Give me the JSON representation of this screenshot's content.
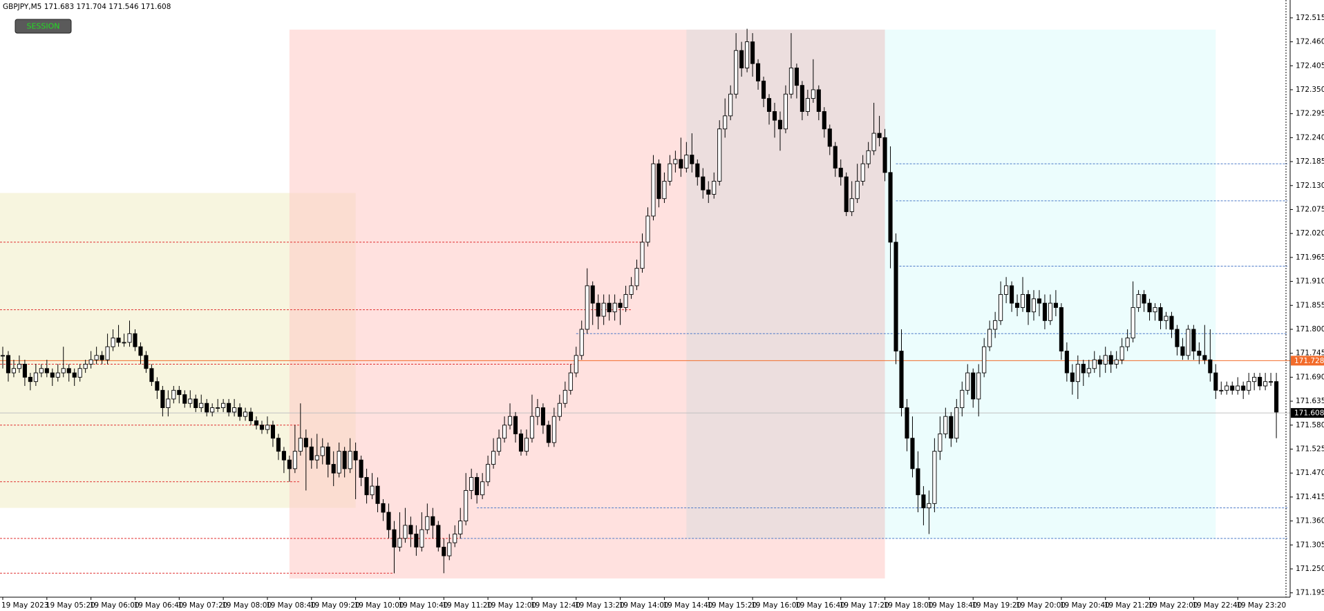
{
  "chart_data": {
    "type": "candlestick",
    "title": "GBPJPY,M5  171.683 171.704 171.546 171.608",
    "button": "SESSION",
    "xlim": [
      -0.5,
      233.5
    ],
    "ylim": [
      171.185,
      172.556
    ],
    "yticks": [
      171.195,
      {
        "value": 171.25,
        "label": "171.250"
      },
      171.305,
      {
        "value": 171.36,
        "label": "171.360"
      },
      171.415,
      {
        "value": 171.47,
        "label": "171.470"
      },
      171.525,
      {
        "value": 171.58,
        "label": "171.580"
      },
      171.635,
      {
        "value": 171.69,
        "label": "171.690"
      },
      171.745,
      {
        "value": 171.8,
        "label": "171.800"
      },
      171.855,
      {
        "value": 171.91,
        "label": "171.910"
      },
      171.965,
      {
        "value": 172.02,
        "label": "172.020"
      },
      172.075,
      {
        "value": 172.13,
        "label": "172.130"
      },
      172.185,
      {
        "value": 172.24,
        "label": "172.240"
      },
      172.295,
      {
        "value": 172.35,
        "label": "172.350"
      },
      172.405,
      {
        "value": 172.46,
        "label": "172.460"
      },
      172.515
    ],
    "xticks": [
      {
        "value": 0,
        "label": "19 May 2023"
      },
      {
        "value": 8,
        "label": "19 May 05:20"
      },
      {
        "value": 16,
        "label": "19 May 06:00"
      },
      {
        "value": 24,
        "label": "19 May 06:40"
      },
      {
        "value": 32,
        "label": "19 May 07:20"
      },
      {
        "value": 40,
        "label": "19 May 08:00"
      },
      {
        "value": 48,
        "label": "19 May 08:40"
      },
      {
        "value": 56,
        "label": "19 May 09:20"
      },
      {
        "value": 64,
        "label": "19 May 10:00"
      },
      {
        "value": 72,
        "label": "19 May 10:40"
      },
      {
        "value": 80,
        "label": "19 May 11:20"
      },
      {
        "value": 88,
        "label": "19 May 12:00"
      },
      {
        "value": 96,
        "label": "19 May 12:40"
      },
      {
        "value": 104,
        "label": "19 May 13:20"
      },
      {
        "value": 112,
        "label": "19 May 14:00"
      },
      {
        "value": 120,
        "label": "19 May 14:40"
      },
      {
        "value": 128,
        "label": "19 May 15:20"
      },
      {
        "value": 136,
        "label": "19 May 16:00"
      },
      {
        "value": 144,
        "label": "19 May 16:40"
      },
      {
        "value": 152,
        "label": "19 May 17:20"
      },
      {
        "value": 160,
        "label": "19 May 18:00"
      },
      {
        "value": 168,
        "label": "19 May 18:40"
      },
      {
        "value": 176,
        "label": "19 May 19:20"
      },
      {
        "value": 184,
        "label": "19 May 20:00"
      },
      {
        "value": 192,
        "label": "19 May 20:40"
      },
      {
        "value": 200,
        "label": "19 May 21:20"
      },
      {
        "value": 208,
        "label": "19 May 22:00"
      },
      {
        "value": 216,
        "label": "19 May 22:40"
      },
      {
        "value": 224,
        "label": "19 May 23:20"
      }
    ],
    "bull_color": "#ffffff",
    "bear_color": "#000000",
    "close": [
      171.74,
      171.7,
      171.71,
      171.72,
      171.69,
      171.68,
      171.7,
      171.71,
      171.7,
      171.69,
      171.7,
      171.71,
      171.7,
      171.69,
      171.71,
      171.72,
      171.73,
      171.74,
      171.73,
      171.76,
      171.78,
      171.77,
      171.77,
      171.79,
      171.76,
      171.74,
      171.71,
      171.68,
      171.66,
      171.62,
      171.64,
      171.66,
      171.65,
      171.63,
      171.64,
      171.62,
      171.63,
      171.61,
      171.62,
      171.62,
      171.63,
      171.61,
      171.62,
      171.6,
      171.61,
      171.59,
      171.58,
      171.57,
      171.58,
      171.55,
      171.52,
      171.5,
      171.48,
      171.52,
      171.55,
      171.53,
      171.5,
      171.51,
      171.53,
      171.49,
      171.47,
      171.52,
      171.48,
      171.52,
      171.5,
      171.46,
      171.42,
      171.44,
      171.4,
      171.38,
      171.34,
      171.3,
      171.32,
      171.35,
      171.33,
      171.3,
      171.34,
      171.37,
      171.35,
      171.3,
      171.28,
      171.31,
      171.33,
      171.36,
      171.43,
      171.46,
      171.42,
      171.45,
      171.49,
      171.52,
      171.55,
      171.58,
      171.6,
      171.56,
      171.52,
      171.55,
      171.6,
      171.62,
      171.58,
      171.54,
      171.6,
      171.63,
      171.66,
      171.7,
      171.74,
      171.8,
      171.9,
      171.86,
      171.83,
      171.86,
      171.84,
      171.86,
      171.85,
      171.88,
      171.9,
      171.94,
      172.0,
      172.06,
      172.18,
      172.1,
      172.14,
      172.18,
      172.19,
      172.17,
      172.2,
      172.18,
      172.15,
      172.12,
      172.11,
      172.14,
      172.26,
      172.29,
      172.34,
      172.44,
      172.4,
      172.46,
      172.41,
      172.37,
      172.33,
      172.3,
      172.28,
      172.26,
      172.34,
      172.4,
      172.36,
      172.3,
      172.33,
      172.35,
      172.3,
      172.26,
      172.22,
      172.17,
      172.15,
      172.07,
      172.1,
      172.14,
      172.18,
      172.21,
      172.25,
      172.24,
      172.16,
      172.0,
      171.75,
      171.62,
      171.55,
      171.48,
      171.42,
      171.39,
      171.4,
      171.52,
      171.56,
      171.6,
      171.55,
      171.62,
      171.66,
      171.7,
      171.64,
      171.7,
      171.76,
      171.8,
      171.82,
      171.88,
      171.9,
      171.86,
      171.85,
      171.88,
      171.84,
      171.87,
      171.86,
      171.82,
      171.86,
      171.85,
      171.75,
      171.7,
      171.68,
      171.72,
      171.7,
      171.71,
      171.73,
      171.72,
      171.74,
      171.72,
      171.73,
      171.76,
      171.78,
      171.85,
      171.88,
      171.86,
      171.84,
      171.85,
      171.82,
      171.83,
      171.8,
      171.76,
      171.74,
      171.8,
      171.75,
      171.74,
      171.73,
      171.7,
      171.66,
      171.66,
      171.67,
      171.66,
      171.67,
      171.66,
      171.68,
      171.69,
      171.67,
      171.68,
      171.68,
      171.61
    ],
    "high": [
      171.76,
      171.75,
      171.73,
      171.74,
      171.73,
      171.7,
      171.72,
      171.72,
      171.73,
      171.71,
      171.72,
      171.76,
      171.72,
      171.71,
      171.72,
      171.73,
      171.75,
      171.76,
      171.75,
      171.79,
      171.8,
      171.81,
      171.79,
      171.82,
      171.8,
      171.77,
      171.75,
      171.72,
      171.69,
      171.67,
      171.66,
      171.67,
      171.67,
      171.66,
      171.66,
      171.65,
      171.65,
      171.64,
      171.63,
      171.64,
      171.64,
      171.64,
      171.64,
      171.63,
      171.62,
      171.62,
      171.6,
      171.59,
      171.6,
      171.59,
      171.56,
      171.53,
      171.51,
      171.58,
      171.63,
      171.57,
      171.55,
      171.56,
      171.55,
      171.54,
      171.52,
      171.54,
      171.53,
      171.55,
      171.54,
      171.51,
      171.48,
      171.47,
      171.46,
      171.41,
      171.4,
      171.36,
      171.38,
      171.39,
      171.37,
      171.35,
      171.38,
      171.4,
      171.39,
      171.36,
      171.32,
      171.33,
      171.35,
      171.39,
      171.47,
      171.48,
      171.47,
      171.47,
      171.51,
      171.55,
      171.57,
      171.6,
      171.63,
      171.61,
      171.57,
      171.57,
      171.65,
      171.64,
      171.63,
      171.59,
      171.62,
      171.65,
      171.68,
      171.72,
      171.76,
      171.82,
      171.94,
      171.91,
      171.88,
      171.88,
      171.88,
      171.88,
      171.87,
      171.9,
      171.92,
      171.96,
      172.02,
      172.08,
      172.2,
      172.19,
      172.16,
      172.2,
      172.21,
      172.24,
      172.23,
      172.25,
      172.19,
      172.17,
      172.14,
      172.16,
      172.28,
      172.33,
      172.36,
      172.48,
      172.46,
      172.49,
      172.48,
      172.42,
      172.38,
      172.34,
      172.32,
      172.3,
      172.36,
      172.48,
      172.41,
      172.37,
      172.35,
      172.42,
      172.36,
      172.31,
      172.27,
      172.23,
      172.19,
      172.16,
      172.14,
      172.18,
      172.2,
      172.23,
      172.32,
      172.29,
      172.26,
      172.22,
      172.02,
      171.8,
      171.64,
      171.6,
      171.52,
      171.44,
      171.43,
      171.55,
      171.6,
      171.62,
      171.61,
      171.64,
      171.68,
      171.72,
      171.71,
      171.72,
      171.78,
      171.82,
      171.84,
      171.91,
      171.92,
      171.91,
      171.88,
      171.92,
      171.89,
      171.89,
      171.89,
      171.88,
      171.88,
      171.89,
      171.86,
      171.77,
      171.72,
      171.74,
      171.73,
      171.73,
      171.75,
      171.74,
      171.76,
      171.75,
      171.75,
      171.78,
      171.8,
      171.91,
      171.89,
      171.89,
      171.87,
      171.86,
      171.86,
      171.84,
      171.84,
      171.81,
      171.78,
      171.81,
      171.81,
      171.77,
      171.81,
      171.8,
      171.72,
      171.68,
      171.68,
      171.68,
      171.69,
      171.68,
      171.7,
      171.7,
      171.7,
      171.7,
      171.7,
      171.7
    ],
    "low": [
      171.71,
      171.68,
      171.69,
      171.7,
      171.67,
      171.66,
      171.67,
      171.69,
      171.69,
      171.67,
      171.68,
      171.69,
      171.68,
      171.67,
      171.68,
      171.7,
      171.71,
      171.72,
      171.72,
      171.72,
      171.75,
      171.76,
      171.76,
      171.76,
      171.75,
      171.72,
      171.7,
      171.67,
      171.64,
      171.6,
      171.6,
      171.63,
      171.63,
      171.62,
      171.62,
      171.61,
      171.61,
      171.6,
      171.6,
      171.61,
      171.61,
      171.6,
      171.6,
      171.59,
      171.59,
      171.58,
      171.57,
      171.56,
      171.56,
      171.53,
      171.5,
      171.47,
      171.45,
      171.47,
      171.51,
      171.43,
      171.48,
      171.48,
      171.49,
      171.46,
      171.44,
      171.46,
      171.46,
      171.47,
      171.41,
      171.44,
      171.4,
      171.41,
      171.38,
      171.36,
      171.32,
      171.24,
      171.29,
      171.31,
      171.3,
      171.28,
      171.29,
      171.33,
      171.32,
      171.29,
      171.24,
      171.27,
      171.3,
      171.32,
      171.35,
      171.41,
      171.4,
      171.41,
      171.44,
      171.48,
      171.51,
      171.54,
      171.57,
      171.54,
      171.51,
      171.51,
      171.54,
      171.58,
      171.56,
      171.53,
      171.53,
      171.59,
      171.62,
      171.65,
      171.69,
      171.73,
      171.79,
      171.81,
      171.8,
      171.81,
      171.82,
      171.82,
      171.81,
      171.84,
      171.87,
      171.89,
      171.93,
      171.99,
      172.05,
      172.08,
      172.09,
      172.13,
      172.16,
      172.15,
      172.16,
      172.16,
      172.13,
      172.1,
      172.09,
      172.1,
      172.13,
      172.24,
      172.28,
      172.33,
      172.38,
      172.39,
      172.38,
      172.35,
      172.31,
      172.27,
      172.24,
      172.21,
      172.25,
      172.33,
      172.33,
      172.28,
      172.29,
      172.32,
      172.28,
      172.24,
      172.2,
      172.15,
      172.13,
      172.06,
      172.06,
      172.09,
      172.13,
      172.17,
      172.2,
      172.22,
      172.14,
      171.94,
      171.72,
      171.6,
      171.52,
      171.46,
      171.38,
      171.35,
      171.33,
      171.38,
      171.5,
      171.55,
      171.53,
      171.54,
      171.6,
      171.65,
      171.62,
      171.6,
      171.69,
      171.75,
      171.78,
      171.81,
      171.86,
      171.84,
      171.83,
      171.84,
      171.81,
      171.82,
      171.83,
      171.8,
      171.81,
      171.83,
      171.73,
      171.68,
      171.65,
      171.64,
      171.67,
      171.69,
      171.7,
      171.69,
      171.7,
      171.7,
      171.71,
      171.72,
      171.75,
      171.77,
      171.84,
      171.84,
      171.82,
      171.82,
      171.8,
      171.8,
      171.78,
      171.74,
      171.73,
      171.73,
      171.73,
      171.72,
      171.72,
      171.68,
      171.64,
      171.65,
      171.65,
      171.65,
      171.65,
      171.64,
      171.65,
      171.66,
      171.66,
      171.66,
      171.67,
      171.55
    ],
    "sessions": [
      {
        "start": -0.5,
        "end": 64,
        "high": 172.113,
        "low": 171.39,
        "color": "#f0ecc4"
      },
      {
        "start": 52,
        "end": 160,
        "high": 172.488,
        "low": 171.228,
        "color": "#ffc8c4"
      },
      {
        "start": 124,
        "end": 160,
        "high": 172.488,
        "low": 171.32,
        "color": "#dcdcdc"
      },
      {
        "start": 160,
        "end": 220,
        "high": 172.488,
        "low": 171.32,
        "color": "#dcfcfc"
      }
    ],
    "levels": [
      {
        "price": 172.0,
        "start": -0.5,
        "end": 116,
        "color": "#e03030"
      },
      {
        "price": 171.845,
        "start": -0.5,
        "end": 114,
        "color": "#e03030"
      },
      {
        "price": 171.72,
        "start": -0.5,
        "end": 104,
        "color": "#e03030"
      },
      {
        "price": 171.58,
        "start": -0.5,
        "end": 54,
        "color": "#e03030"
      },
      {
        "price": 171.45,
        "start": -0.5,
        "end": 54,
        "color": "#e03030"
      },
      {
        "price": 171.32,
        "start": -0.5,
        "end": 83,
        "color": "#e03030"
      },
      {
        "price": 171.24,
        "start": -0.5,
        "end": 71,
        "color": "#e03030"
      },
      {
        "price": 172.18,
        "start": 162,
        "end": 233,
        "color": "#4a78c8"
      },
      {
        "price": 172.095,
        "start": 162,
        "end": 233,
        "color": "#4a78c8"
      },
      {
        "price": 171.945,
        "start": 162,
        "end": 233,
        "color": "#4a78c8"
      },
      {
        "price": 171.79,
        "start": 104,
        "end": 233,
        "color": "#4a78c8"
      },
      {
        "price": 171.39,
        "start": 86,
        "end": 233,
        "color": "#4a78c8"
      },
      {
        "price": 171.32,
        "start": 83,
        "end": 233,
        "color": "#4a78c8"
      }
    ],
    "price_lines": [
      {
        "value": 171.728,
        "color": "#f26b2a",
        "text_color": "#ffffff"
      },
      {
        "value": 171.608,
        "color": "#000000",
        "text_color": "#ffffff",
        "line_color": "#c0c0c0"
      }
    ]
  }
}
